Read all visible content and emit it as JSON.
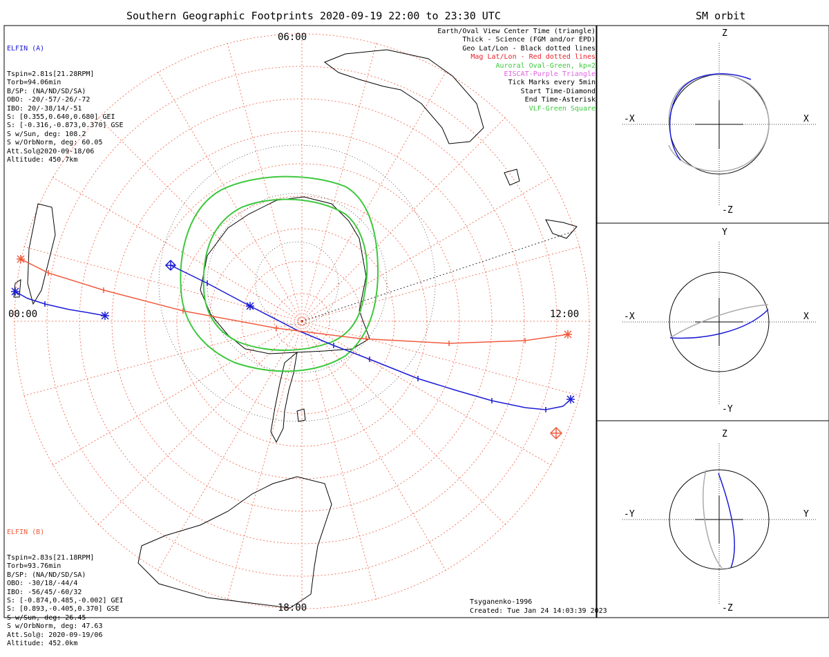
{
  "header": {
    "main_title": "Southern Geographic Footprints 2020-09-19 22:00 to 23:30 UTC",
    "orbit_title": "SM orbit"
  },
  "colors": {
    "elfin_a": "#1a1ad6",
    "elfin_b": "#f05a3c",
    "geo_grid": "#000000",
    "mag_grid": "#f05a3c",
    "auroral_oval": "#3cc83c",
    "orbit_gray": "#aaaaaa",
    "eiscat": "#e060e0"
  },
  "elfin_a": {
    "name": "ELFIN (A)",
    "lines": [
      "Tspin=2.81s[21.28RPM]",
      "Torb=94.06min",
      "B/SP: (NA/ND/SD/SA)",
      "OBO: -20/-57/-26/-72",
      "IBO: 20/-38/14/-51",
      "S: [0.355,0.640,0.680] GEI",
      "S: [-0.316,-0.873,0.370] GSE",
      "S w/Sun, deg: 108.2",
      "S w/OrbNorm, deg: 60.05",
      "Att.Sol@2020-09-18/06",
      "Altitude: 450.7km"
    ]
  },
  "elfin_b": {
    "name": "ELFIN (B)",
    "lines": [
      "Tspin=2.83s[21.18RPM]",
      "Torb=93.76min",
      "B/SP: (NA/ND/SD/SA)",
      "OBO: -30/18/-44/4",
      "IBO: -56/45/-60/32",
      "S: [-0.874,0.485,-0.002] GEI",
      "S: [0.893,-0.405,0.370] GSE",
      "S w/Sun, deg: 26.45",
      "S w/OrbNorm, deg: 47.63",
      "Att.Sol@: 2020-09-19/06",
      "Altitude: 452.0km"
    ]
  },
  "legend": [
    {
      "text": "Earth/Oval View Center Time (triangle)",
      "color": "#000000"
    },
    {
      "text": "Thick - Science (FGM and/or EPD)",
      "color": "#000000"
    },
    {
      "text": "Geo Lat/Lon - Black dotted lines",
      "color": "#000000"
    },
    {
      "text": "Mag Lat/Lon - Red dotted lines",
      "color": "#e8202a"
    },
    {
      "text": "Auroral Oval-Green, kp=2",
      "color": "#3cc83c"
    },
    {
      "text": "EISCAT-Purple Triangle",
      "color": "#e060e0"
    },
    {
      "text": "Tick Marks every 5min",
      "color": "#000000"
    },
    {
      "text": "Start Time-Diamond",
      "color": "#000000"
    },
    {
      "text": "End Time-Asterisk",
      "color": "#000000"
    },
    {
      "text": "VLF-Green Square",
      "color": "#3cc83c"
    }
  ],
  "map": {
    "mlt_labels": {
      "top": "06:00",
      "left": "00:00",
      "right": "12:00",
      "bottom": "18:00"
    },
    "model": "Tsyganenko-1996",
    "created": "Created: Tue Jan 24 14:03:39 2023"
  },
  "orbit_panels": [
    {
      "top_label": "Z",
      "bottom_label": "-Z",
      "left_label": "-X",
      "right_label": "X"
    },
    {
      "top_label": "Y",
      "bottom_label": "-Y",
      "left_label": "-X",
      "right_label": "X"
    },
    {
      "top_label": "Z",
      "bottom_label": "-Z",
      "left_label": "-Y",
      "right_label": "Y"
    }
  ]
}
